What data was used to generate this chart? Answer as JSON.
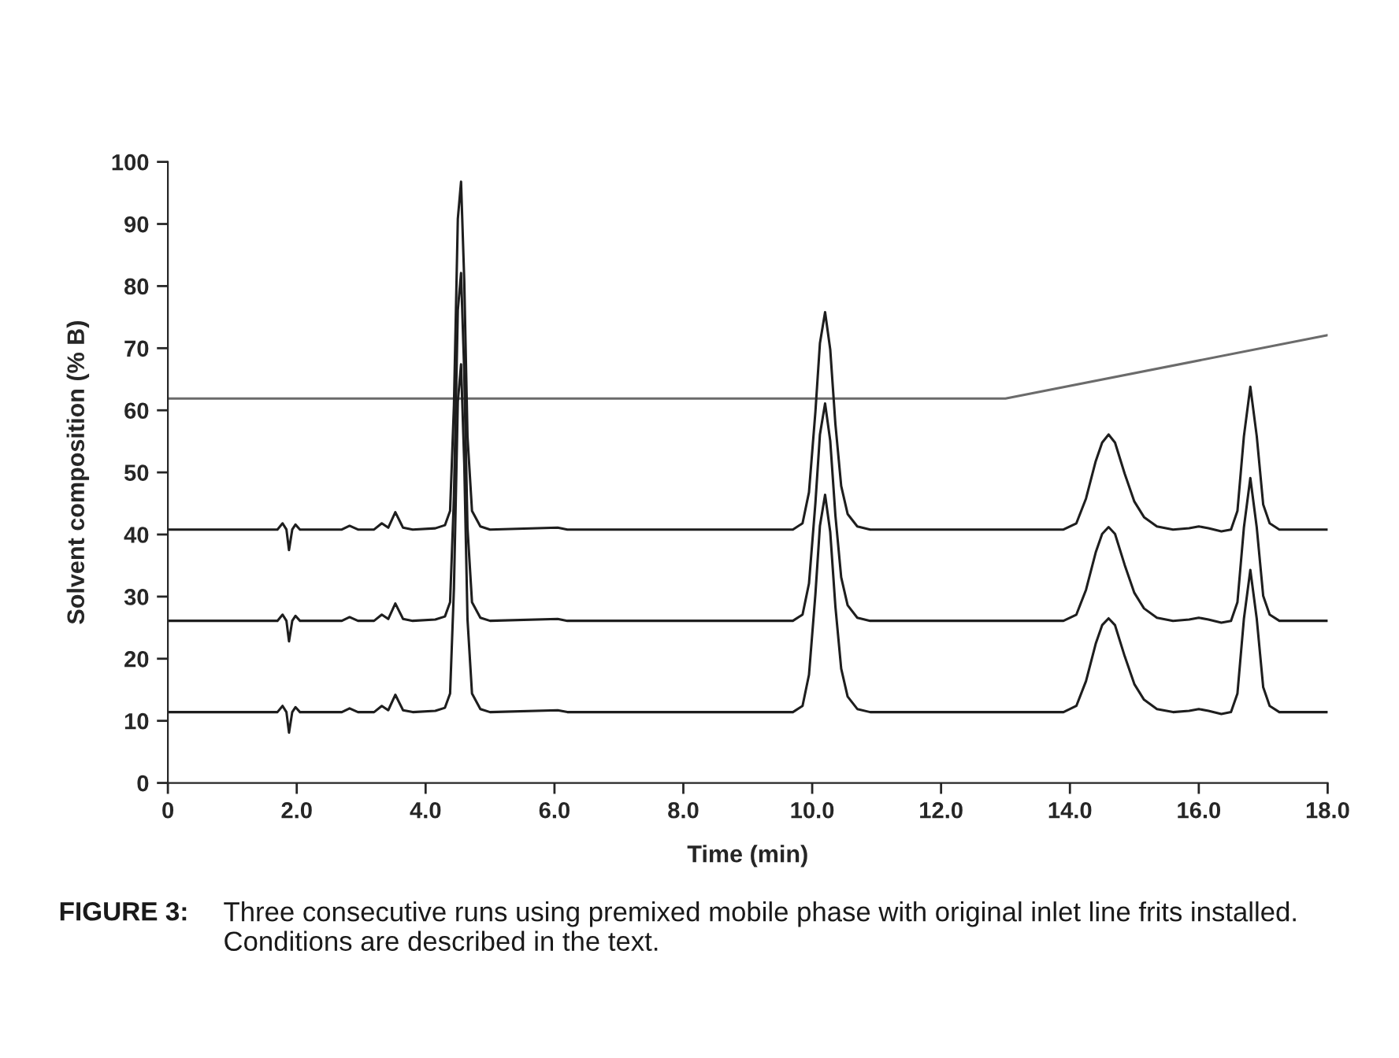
{
  "chart_data": {
    "type": "line",
    "xlabel": "Time (min)",
    "ylabel": "Solvent composition (% B)",
    "annotations": [
      "FIGURE 3:",
      "Three consecutive runs using premixed mobile phase with original inlet line frits installed. Conditions are described in the text."
    ],
    "x": [
      0,
      1.7,
      1.78,
      1.84,
      1.88,
      1.93,
      1.98,
      2.05,
      2.7,
      2.82,
      2.95,
      3.2,
      3.32,
      3.42,
      3.53,
      3.65,
      3.8,
      4.15,
      4.3,
      4.38,
      4.44,
      4.5,
      4.55,
      4.6,
      4.65,
      4.72,
      4.85,
      5.0,
      6.05,
      6.2,
      9.7,
      9.85,
      9.95,
      10.05,
      10.12,
      10.2,
      10.28,
      10.36,
      10.45,
      10.55,
      10.7,
      10.9,
      13.9,
      14.1,
      14.25,
      14.4,
      14.5,
      14.6,
      14.7,
      14.85,
      15.0,
      15.15,
      15.35,
      15.6,
      15.85,
      16.0,
      16.15,
      16.35,
      16.5,
      16.6,
      16.7,
      16.8,
      16.9,
      17.0,
      17.1,
      17.25,
      18.0
    ],
    "series": [
      {
        "x": [
          0,
          13,
          18
        ],
        "color": "#6b6b6b",
        "values": [
          61.9,
          61.9,
          72.1
        ]
      },
      {
        "color": "#1e1e1e",
        "values": [
          40.8,
          40.8,
          41.8,
          40.8,
          37.5,
          40.8,
          41.6,
          40.8,
          40.8,
          41.4,
          40.8,
          40.8,
          41.8,
          41.1,
          43.6,
          41.1,
          40.8,
          41.0,
          41.5,
          43.8,
          60.8,
          90.8,
          96.8,
          80.8,
          55.8,
          43.8,
          41.3,
          40.8,
          41.1,
          40.8,
          40.8,
          41.8,
          46.8,
          59.8,
          70.8,
          75.8,
          69.8,
          57.8,
          47.8,
          43.3,
          41.3,
          40.8,
          40.8,
          41.8,
          45.8,
          51.8,
          54.8,
          56.1,
          54.8,
          49.8,
          45.3,
          42.8,
          41.3,
          40.8,
          41.0,
          41.3,
          41.0,
          40.5,
          40.8,
          43.8,
          55.8,
          63.8,
          55.8,
          44.8,
          41.8,
          40.8,
          40.8
        ]
      },
      {
        "color": "#1e1e1e",
        "values": [
          26.1,
          26.1,
          27.1,
          26.1,
          22.8,
          26.1,
          26.9,
          26.1,
          26.1,
          26.7,
          26.1,
          26.1,
          27.1,
          26.4,
          28.9,
          26.4,
          26.1,
          26.3,
          26.8,
          29.1,
          46.1,
          76.1,
          82.1,
          66.1,
          41.1,
          29.1,
          26.6,
          26.1,
          26.4,
          26.1,
          26.1,
          27.1,
          32.1,
          45.1,
          56.1,
          61.1,
          55.1,
          43.1,
          33.1,
          28.6,
          26.6,
          26.1,
          26.1,
          27.1,
          31.1,
          37.1,
          40.1,
          41.2,
          40.1,
          35.1,
          30.6,
          28.1,
          26.6,
          26.1,
          26.3,
          26.6,
          26.3,
          25.8,
          26.1,
          29.1,
          41.1,
          49.1,
          41.1,
          30.1,
          27.1,
          26.1,
          26.1
        ]
      },
      {
        "color": "#1e1e1e",
        "values": [
          11.4,
          11.4,
          12.4,
          11.4,
          8.1,
          11.4,
          12.2,
          11.4,
          11.4,
          12.0,
          11.4,
          11.4,
          12.4,
          11.7,
          14.2,
          11.7,
          11.4,
          11.6,
          12.1,
          14.4,
          31.4,
          61.4,
          67.4,
          51.4,
          26.4,
          14.4,
          11.9,
          11.4,
          11.7,
          11.4,
          11.4,
          12.4,
          17.4,
          30.4,
          41.4,
          46.4,
          40.4,
          28.4,
          18.4,
          13.9,
          11.9,
          11.4,
          11.4,
          12.4,
          16.4,
          22.4,
          25.4,
          26.5,
          25.4,
          20.4,
          15.9,
          13.4,
          11.9,
          11.4,
          11.6,
          11.9,
          11.6,
          11.1,
          11.4,
          14.4,
          26.4,
          34.3,
          26.4,
          15.4,
          12.4,
          11.4,
          11.4
        ]
      }
    ],
    "xlim": [
      0,
      18
    ],
    "xticks": [
      0,
      {
        "value": 2,
        "label": "2.0"
      },
      {
        "value": 4,
        "label": "4.0"
      },
      {
        "value": 6,
        "label": "6.0"
      },
      {
        "value": 8,
        "label": "8.0"
      },
      {
        "value": 10,
        "label": "10.0"
      },
      {
        "value": 12,
        "label": "12.0"
      },
      {
        "value": 14,
        "label": "14.0"
      },
      {
        "value": 16,
        "label": "16.0"
      },
      {
        "value": 18,
        "label": "18.0"
      }
    ],
    "ylim": [
      0,
      100
    ],
    "yticks": [
      0,
      10,
      20,
      30,
      40,
      50,
      60,
      70,
      80,
      90,
      100
    ],
    "line_style": "solid"
  }
}
